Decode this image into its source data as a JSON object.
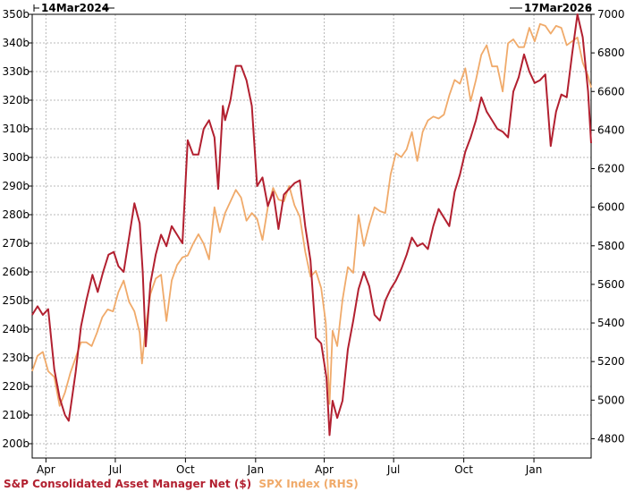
{
  "chart_data": {
    "type": "line",
    "start_date_label": "14Mar2024",
    "end_date_label": "17Mar2026",
    "x_tick_labels": [
      "Apr",
      "Jul",
      "Oct",
      "Jan",
      "Apr",
      "Jul",
      "Oct",
      "Jan"
    ],
    "x_ticks": [
      "2024-04-01",
      "2024-07-01",
      "2024-10-01",
      "2025-01-01",
      "2025-04-01",
      "2025-07-01",
      "2025-10-01",
      "2026-01-01"
    ],
    "xlim": [
      "2024-03-14",
      "2026-03-17"
    ],
    "left_axis": {
      "ylim": [
        195,
        350
      ],
      "ticks": [
        200,
        210,
        220,
        230,
        240,
        250,
        260,
        270,
        280,
        290,
        300,
        310,
        320,
        330,
        340,
        350
      ],
      "tick_labels": [
        "200b",
        "210b",
        "220b",
        "230b",
        "240b",
        "250b",
        "260b",
        "270b",
        "280b",
        "290b",
        "300b",
        "310b",
        "320b",
        "330b",
        "340b",
        "350b"
      ]
    },
    "right_axis": {
      "ylim": [
        4700,
        7000
      ],
      "ticks": [
        4800,
        5000,
        5200,
        5400,
        5600,
        5800,
        6000,
        6200,
        6400,
        6600,
        6800,
        7000
      ],
      "tick_labels": [
        "4800",
        "5000",
        "5200",
        "5400",
        "5600",
        "5800",
        "6000",
        "6200",
        "6400",
        "6600",
        "6800",
        "7000"
      ]
    },
    "grid": true,
    "legend_position": "bottom-left",
    "series": [
      {
        "name": "S&P Consolidated Asset Manager Net ($)",
        "axis": "left",
        "color": "#b22030",
        "points": [
          [
            "2024-03-14",
            245
          ],
          [
            "2024-03-21",
            248
          ],
          [
            "2024-03-28",
            245
          ],
          [
            "2024-04-04",
            247
          ],
          [
            "2024-04-12",
            226
          ],
          [
            "2024-04-19",
            216
          ],
          [
            "2024-04-26",
            210
          ],
          [
            "2024-05-01",
            208
          ],
          [
            "2024-05-10",
            225
          ],
          [
            "2024-05-17",
            241
          ],
          [
            "2024-05-24",
            250
          ],
          [
            "2024-06-01",
            259
          ],
          [
            "2024-06-08",
            253
          ],
          [
            "2024-06-15",
            260
          ],
          [
            "2024-06-22",
            266
          ],
          [
            "2024-06-29",
            267
          ],
          [
            "2024-07-05",
            262
          ],
          [
            "2024-07-12",
            260
          ],
          [
            "2024-07-19",
            272
          ],
          [
            "2024-07-26",
            284
          ],
          [
            "2024-08-02",
            277
          ],
          [
            "2024-08-06",
            260
          ],
          [
            "2024-08-10",
            234
          ],
          [
            "2024-08-16",
            256
          ],
          [
            "2024-08-23",
            266
          ],
          [
            "2024-08-30",
            273
          ],
          [
            "2024-09-06",
            269
          ],
          [
            "2024-09-13",
            276
          ],
          [
            "2024-09-20",
            273
          ],
          [
            "2024-09-27",
            270
          ],
          [
            "2024-10-04",
            306
          ],
          [
            "2024-10-11",
            301
          ],
          [
            "2024-10-18",
            301
          ],
          [
            "2024-10-25",
            310
          ],
          [
            "2024-11-01",
            313
          ],
          [
            "2024-11-08",
            307
          ],
          [
            "2024-11-13",
            289
          ],
          [
            "2024-11-19",
            318
          ],
          [
            "2024-11-22",
            313
          ],
          [
            "2024-11-29",
            320
          ],
          [
            "2024-12-06",
            332
          ],
          [
            "2024-12-13",
            332
          ],
          [
            "2024-12-20",
            327
          ],
          [
            "2024-12-27",
            318
          ],
          [
            "2025-01-03",
            290
          ],
          [
            "2025-01-10",
            293
          ],
          [
            "2025-01-17",
            283
          ],
          [
            "2025-01-24",
            288
          ],
          [
            "2025-01-31",
            275
          ],
          [
            "2025-02-07",
            287
          ],
          [
            "2025-02-14",
            289
          ],
          [
            "2025-02-21",
            291
          ],
          [
            "2025-02-28",
            292
          ],
          [
            "2025-03-07",
            276
          ],
          [
            "2025-03-14",
            264
          ],
          [
            "2025-03-21",
            237
          ],
          [
            "2025-03-28",
            235
          ],
          [
            "2025-04-04",
            223
          ],
          [
            "2025-04-08",
            203
          ],
          [
            "2025-04-12",
            215
          ],
          [
            "2025-04-18",
            209
          ],
          [
            "2025-04-25",
            215
          ],
          [
            "2025-05-02",
            233
          ],
          [
            "2025-05-09",
            243
          ],
          [
            "2025-05-16",
            254
          ],
          [
            "2025-05-23",
            260
          ],
          [
            "2025-05-30",
            255
          ],
          [
            "2025-06-06",
            245
          ],
          [
            "2025-06-13",
            243
          ],
          [
            "2025-06-20",
            250
          ],
          [
            "2025-06-27",
            254
          ],
          [
            "2025-07-04",
            257
          ],
          [
            "2025-07-11",
            261
          ],
          [
            "2025-07-18",
            266
          ],
          [
            "2025-07-25",
            272
          ],
          [
            "2025-08-01",
            269
          ],
          [
            "2025-08-08",
            270
          ],
          [
            "2025-08-15",
            268
          ],
          [
            "2025-08-22",
            276
          ],
          [
            "2025-08-29",
            282
          ],
          [
            "2025-09-05",
            279
          ],
          [
            "2025-09-12",
            276
          ],
          [
            "2025-09-19",
            288
          ],
          [
            "2025-09-26",
            294
          ],
          [
            "2025-10-03",
            302
          ],
          [
            "2025-10-10",
            307
          ],
          [
            "2025-10-17",
            313
          ],
          [
            "2025-10-24",
            321
          ],
          [
            "2025-10-31",
            316
          ],
          [
            "2025-11-07",
            313
          ],
          [
            "2025-11-14",
            310
          ],
          [
            "2025-11-21",
            309
          ],
          [
            "2025-11-28",
            307
          ],
          [
            "2025-12-05",
            323
          ],
          [
            "2025-12-12",
            328
          ],
          [
            "2025-12-19",
            336
          ],
          [
            "2025-12-26",
            330
          ],
          [
            "2026-01-02",
            326
          ],
          [
            "2026-01-09",
            327
          ],
          [
            "2026-01-16",
            329
          ],
          [
            "2026-01-23",
            304
          ],
          [
            "2026-01-30",
            316
          ],
          [
            "2026-02-06",
            322
          ],
          [
            "2026-02-13",
            321
          ],
          [
            "2026-02-20",
            336
          ],
          [
            "2026-02-27",
            350
          ],
          [
            "2026-03-06",
            342
          ],
          [
            "2026-03-13",
            323
          ],
          [
            "2026-03-17",
            305
          ]
        ]
      },
      {
        "name": "SPX Index (RHS)",
        "axis": "right",
        "color": "#f0aa6a",
        "points": [
          [
            "2024-03-14",
            5150
          ],
          [
            "2024-03-21",
            5230
          ],
          [
            "2024-03-28",
            5250
          ],
          [
            "2024-04-04",
            5150
          ],
          [
            "2024-04-12",
            5120
          ],
          [
            "2024-04-19",
            4970
          ],
          [
            "2024-04-26",
            5040
          ],
          [
            "2024-05-03",
            5140
          ],
          [
            "2024-05-10",
            5220
          ],
          [
            "2024-05-17",
            5300
          ],
          [
            "2024-05-24",
            5300
          ],
          [
            "2024-05-31",
            5280
          ],
          [
            "2024-06-07",
            5350
          ],
          [
            "2024-06-14",
            5430
          ],
          [
            "2024-06-21",
            5470
          ],
          [
            "2024-06-28",
            5460
          ],
          [
            "2024-07-05",
            5560
          ],
          [
            "2024-07-12",
            5620
          ],
          [
            "2024-07-19",
            5510
          ],
          [
            "2024-07-26",
            5460
          ],
          [
            "2024-08-02",
            5350
          ],
          [
            "2024-08-05",
            5190
          ],
          [
            "2024-08-09",
            5350
          ],
          [
            "2024-08-16",
            5550
          ],
          [
            "2024-08-23",
            5630
          ],
          [
            "2024-08-30",
            5650
          ],
          [
            "2024-09-06",
            5410
          ],
          [
            "2024-09-13",
            5620
          ],
          [
            "2024-09-20",
            5700
          ],
          [
            "2024-09-27",
            5740
          ],
          [
            "2024-10-04",
            5750
          ],
          [
            "2024-10-11",
            5810
          ],
          [
            "2024-10-18",
            5860
          ],
          [
            "2024-10-25",
            5810
          ],
          [
            "2024-11-01",
            5730
          ],
          [
            "2024-11-08",
            6000
          ],
          [
            "2024-11-15",
            5870
          ],
          [
            "2024-11-22",
            5970
          ],
          [
            "2024-11-29",
            6030
          ],
          [
            "2024-12-06",
            6090
          ],
          [
            "2024-12-13",
            6050
          ],
          [
            "2024-12-20",
            5930
          ],
          [
            "2024-12-27",
            5970
          ],
          [
            "2025-01-03",
            5940
          ],
          [
            "2025-01-10",
            5830
          ],
          [
            "2025-01-17",
            6000
          ],
          [
            "2025-01-24",
            6100
          ],
          [
            "2025-01-31",
            6040
          ],
          [
            "2025-02-07",
            6030
          ],
          [
            "2025-02-14",
            6110
          ],
          [
            "2025-02-21",
            6010
          ],
          [
            "2025-02-28",
            5950
          ],
          [
            "2025-03-07",
            5770
          ],
          [
            "2025-03-14",
            5640
          ],
          [
            "2025-03-21",
            5670
          ],
          [
            "2025-03-28",
            5580
          ],
          [
            "2025-04-03",
            5400
          ],
          [
            "2025-04-08",
            4980
          ],
          [
            "2025-04-12",
            5360
          ],
          [
            "2025-04-18",
            5280
          ],
          [
            "2025-04-25",
            5520
          ],
          [
            "2025-05-02",
            5690
          ],
          [
            "2025-05-09",
            5660
          ],
          [
            "2025-05-16",
            5960
          ],
          [
            "2025-05-23",
            5800
          ],
          [
            "2025-05-30",
            5910
          ],
          [
            "2025-06-06",
            6000
          ],
          [
            "2025-06-13",
            5980
          ],
          [
            "2025-06-20",
            5970
          ],
          [
            "2025-06-27",
            6170
          ],
          [
            "2025-07-04",
            6280
          ],
          [
            "2025-07-11",
            6260
          ],
          [
            "2025-07-18",
            6300
          ],
          [
            "2025-07-25",
            6390
          ],
          [
            "2025-08-01",
            6240
          ],
          [
            "2025-08-08",
            6390
          ],
          [
            "2025-08-15",
            6450
          ],
          [
            "2025-08-22",
            6470
          ],
          [
            "2025-08-29",
            6460
          ],
          [
            "2025-09-05",
            6480
          ],
          [
            "2025-09-12",
            6580
          ],
          [
            "2025-09-19",
            6660
          ],
          [
            "2025-09-26",
            6640
          ],
          [
            "2025-10-03",
            6720
          ],
          [
            "2025-10-10",
            6550
          ],
          [
            "2025-10-17",
            6660
          ],
          [
            "2025-10-24",
            6790
          ],
          [
            "2025-10-31",
            6840
          ],
          [
            "2025-11-07",
            6730
          ],
          [
            "2025-11-14",
            6730
          ],
          [
            "2025-11-21",
            6600
          ],
          [
            "2025-11-28",
            6850
          ],
          [
            "2025-12-05",
            6870
          ],
          [
            "2025-12-12",
            6830
          ],
          [
            "2025-12-19",
            6830
          ],
          [
            "2025-12-26",
            6930
          ],
          [
            "2026-01-02",
            6860
          ],
          [
            "2026-01-09",
            6950
          ],
          [
            "2026-01-16",
            6940
          ],
          [
            "2026-01-23",
            6900
          ],
          [
            "2026-01-30",
            6940
          ],
          [
            "2026-02-06",
            6930
          ],
          [
            "2026-02-13",
            6840
          ],
          [
            "2026-02-20",
            6860
          ],
          [
            "2026-02-27",
            6880
          ],
          [
            "2026-03-06",
            6750
          ],
          [
            "2026-03-13",
            6680
          ],
          [
            "2026-03-17",
            6620
          ]
        ]
      }
    ]
  }
}
